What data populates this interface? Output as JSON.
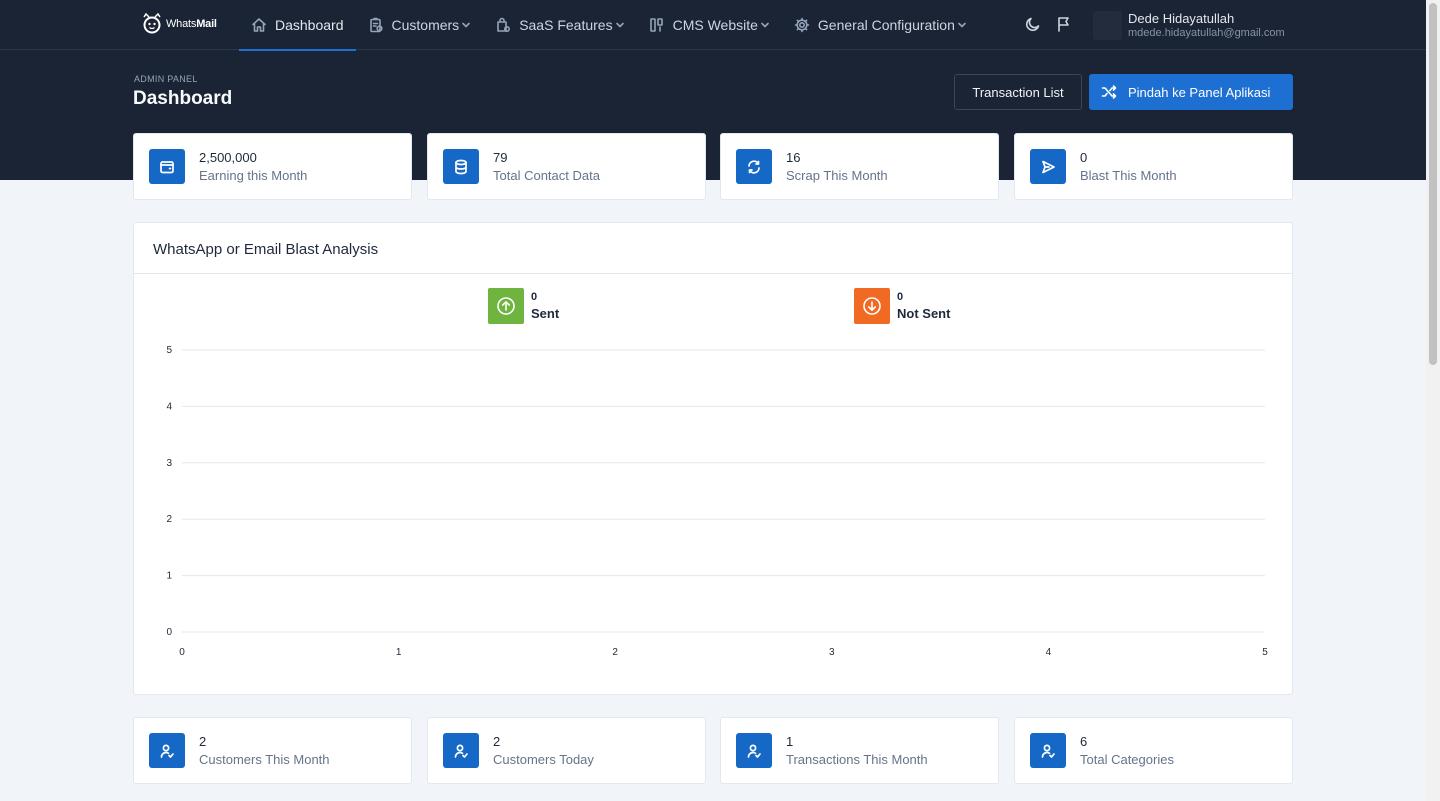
{
  "brand": {
    "name_light": "Whats",
    "name_bold": "Mail"
  },
  "nav": {
    "items": [
      {
        "label": "Dashboard",
        "icon": "home-icon",
        "active": true
      },
      {
        "label": "Customers",
        "icon": "clipboard-user-icon",
        "dropdown": true
      },
      {
        "label": "SaaS Features",
        "icon": "shopping-bag-icon",
        "dropdown": true
      },
      {
        "label": "CMS Website",
        "icon": "columns-icon",
        "dropdown": true
      },
      {
        "label": "General Configuration",
        "icon": "gear-icon",
        "dropdown": true
      }
    ]
  },
  "header_icons": [
    "moon-icon",
    "flag-icon"
  ],
  "user": {
    "name": "Dede Hidayatullah",
    "email": "mdede.hidayatullah@gmail.com"
  },
  "page": {
    "pretitle": "ADMIN PANEL",
    "title": "Dashboard"
  },
  "actions": {
    "transaction_list": "Transaction List",
    "switch_panel": "Pindah ke Panel Aplikasi"
  },
  "top_stats": [
    {
      "value": "2,500,000",
      "label": "Earning this Month",
      "icon": "wallet-icon"
    },
    {
      "value": "79",
      "label": "Total Contact Data",
      "icon": "database-icon"
    },
    {
      "value": "16",
      "label": "Scrap This Month",
      "icon": "refresh-icon"
    },
    {
      "value": "0",
      "label": "Blast This Month",
      "icon": "send-icon"
    }
  ],
  "panel": {
    "title": "WhatsApp or Email Blast Analysis"
  },
  "legend": [
    {
      "value": "0",
      "label": "Sent",
      "color": "#6eb43f",
      "icon": "arrow-up-circle-icon"
    },
    {
      "value": "0",
      "label": "Not Sent",
      "color": "#f06a24",
      "icon": "arrow-down-circle-icon"
    }
  ],
  "chart_data": {
    "type": "line",
    "x": [],
    "series": [
      {
        "name": "Sent",
        "values": []
      },
      {
        "name": "Not Sent",
        "values": []
      }
    ],
    "xticks": [
      "0",
      "1",
      "2",
      "3",
      "4",
      "5"
    ],
    "yticks": [
      "0",
      "1",
      "2",
      "3",
      "4",
      "5"
    ],
    "xlim": [
      0,
      5
    ],
    "ylim": [
      0,
      5
    ],
    "grid": true
  },
  "bottom_stats": [
    {
      "value": "2",
      "label": "Customers This Month",
      "icon": "user-check-icon"
    },
    {
      "value": "2",
      "label": "Customers Today",
      "icon": "user-check-icon"
    },
    {
      "value": "1",
      "label": "Transactions This Month",
      "icon": "user-check-icon"
    },
    {
      "value": "6",
      "label": "Total Categories",
      "icon": "user-check-icon"
    }
  ],
  "colors": {
    "primary": "#1d6fd1",
    "header_bg": "#1b2434",
    "sent": "#6eb43f",
    "not_sent": "#f06a24"
  }
}
